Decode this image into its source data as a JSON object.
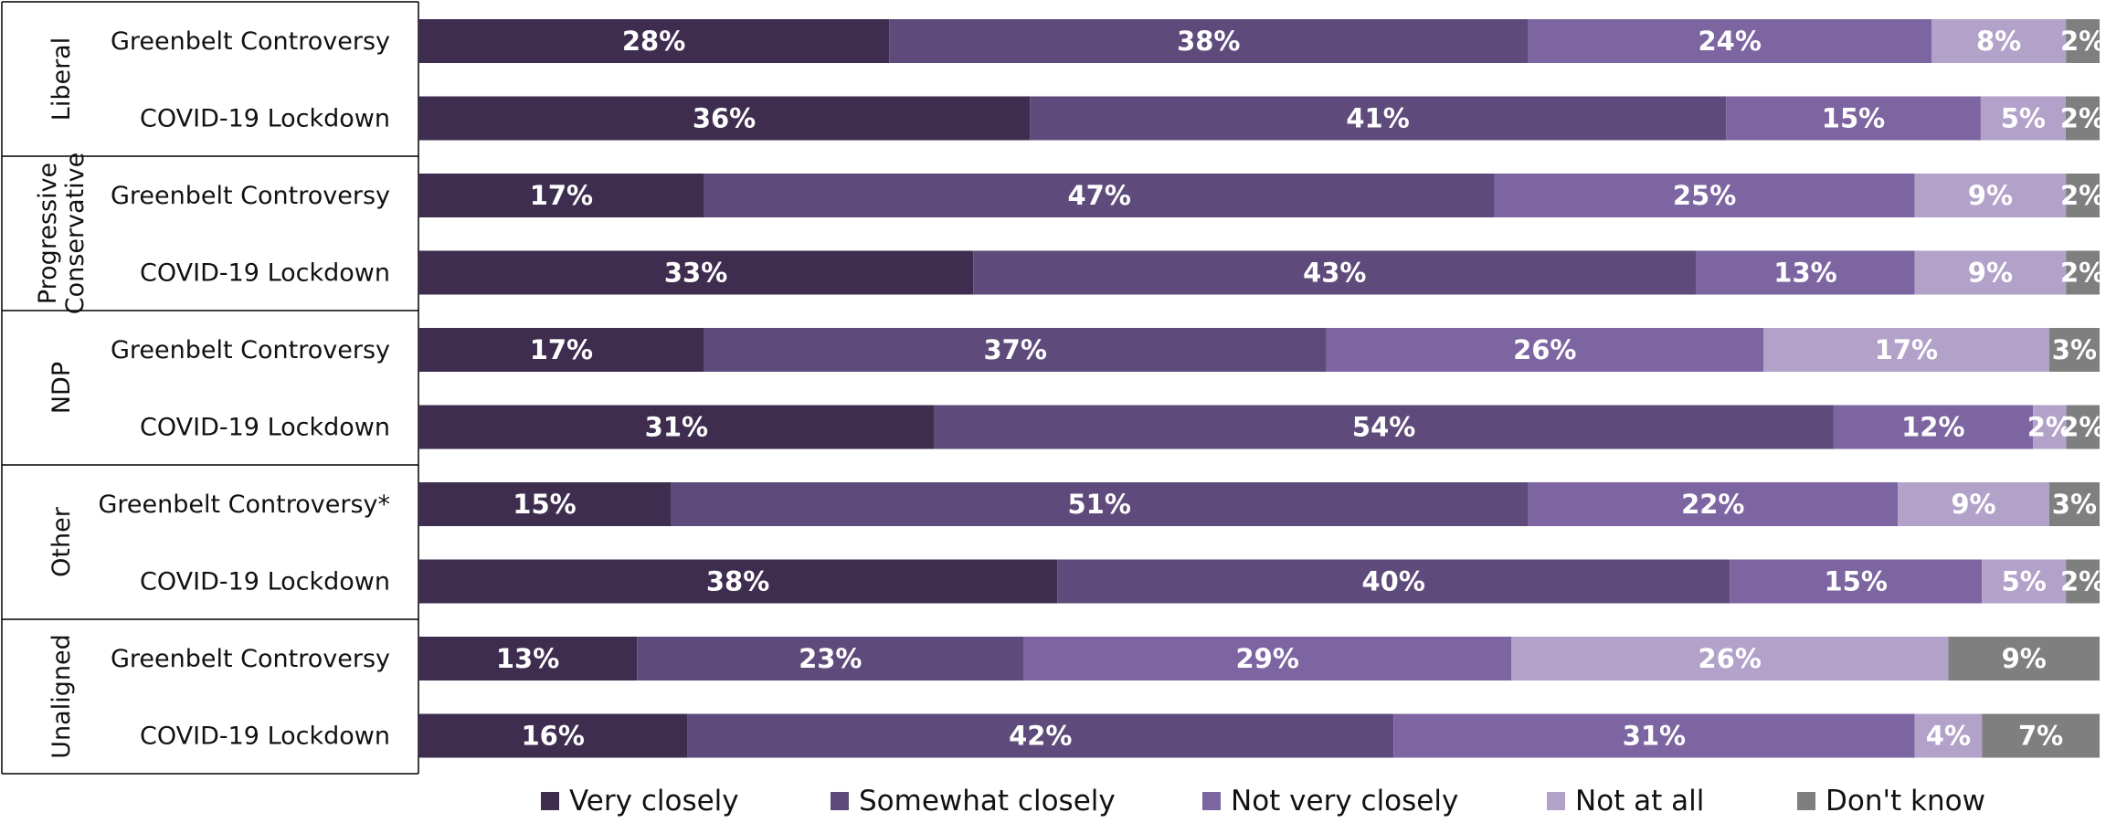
{
  "chart_data": {
    "type": "bar",
    "orientation": "horizontal",
    "stacked": true,
    "groups": [
      {
        "name": "Liberal",
        "rows": [
          {
            "category": "Greenbelt Controversy",
            "values": [
              28,
              38,
              24,
              8,
              2
            ]
          },
          {
            "category": "COVID-19 Lockdown",
            "values": [
              36,
              41,
              15,
              5,
              2
            ]
          }
        ]
      },
      {
        "name": "Progressive Conservative",
        "name_lines": [
          "Progressive",
          "Conservative"
        ],
        "rows": [
          {
            "category": "Greenbelt Controversy",
            "values": [
              17,
              47,
              25,
              9,
              2
            ]
          },
          {
            "category": "COVID-19 Lockdown",
            "values": [
              33,
              43,
              13,
              9,
              2
            ]
          }
        ]
      },
      {
        "name": "NDP",
        "rows": [
          {
            "category": "Greenbelt Controversy",
            "values": [
              17,
              37,
              26,
              17,
              3
            ]
          },
          {
            "category": "COVID-19 Lockdown",
            "values": [
              31,
              54,
              12,
              2,
              2
            ]
          }
        ]
      },
      {
        "name": "Other",
        "rows": [
          {
            "category": "Greenbelt Controversy*",
            "values": [
              15,
              51,
              22,
              9,
              3
            ]
          },
          {
            "category": "COVID-19 Lockdown",
            "values": [
              38,
              40,
              15,
              5,
              2
            ]
          }
        ]
      },
      {
        "name": "Unaligned",
        "rows": [
          {
            "category": "Greenbelt Controversy",
            "values": [
              13,
              23,
              29,
              26,
              9
            ]
          },
          {
            "category": "COVID-19 Lockdown",
            "values": [
              16,
              42,
              31,
              4,
              7
            ]
          }
        ]
      }
    ],
    "series": [
      {
        "name": "Very closely",
        "color": "#3f2d50"
      },
      {
        "name": "Somewhat closely",
        "color": "#5e4b7b"
      },
      {
        "name": "Not very closely",
        "color": "#7d65a2"
      },
      {
        "name": "Not at all",
        "color": "#b2a2c9"
      },
      {
        "name": "Don't know",
        "color": "#7f7f7f"
      }
    ],
    "value_suffix": "%",
    "legend_position": "bottom",
    "grid": false,
    "xlim": [
      0,
      100
    ]
  }
}
